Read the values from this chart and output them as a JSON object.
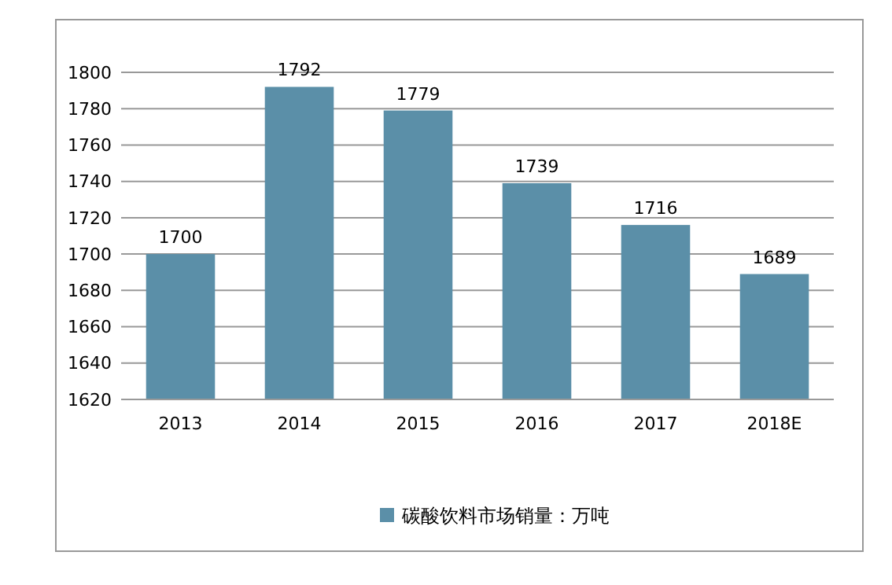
{
  "chart_data": {
    "type": "bar",
    "categories": [
      "2013",
      "2014",
      "2015",
      "2016",
      "2017",
      "2018E"
    ],
    "series": [
      {
        "name": "碳酸饮料市场销量：万吨",
        "color": "#5b8fa8",
        "values": [
          1700,
          1792,
          1779,
          1739,
          1716,
          1689
        ]
      }
    ],
    "ylim": [
      1620,
      1800
    ],
    "yticks": [
      1620,
      1640,
      1660,
      1680,
      1700,
      1720,
      1740,
      1760,
      1780,
      1800
    ],
    "grid": "y",
    "legend": "bottom",
    "data_labels": true
  }
}
